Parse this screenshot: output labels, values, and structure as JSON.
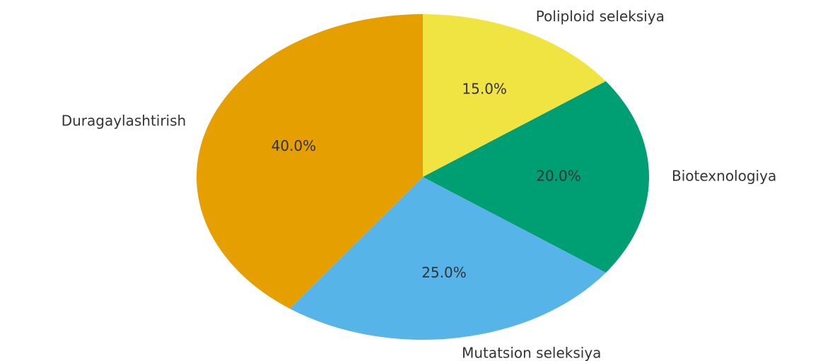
{
  "chart_data": {
    "type": "pie",
    "categories": [
      "Poliploid seleksiya",
      "Biotexnologiya",
      "Mutatsion seleksiya",
      "Duragaylashtirish"
    ],
    "values": [
      15,
      20,
      25,
      40
    ],
    "value_labels": [
      "15.0%",
      "20.0%",
      "25.0%",
      "40.0%"
    ],
    "colors": [
      "#f0e442",
      "#009e73",
      "#56b4e9",
      "#e69f00"
    ]
  }
}
